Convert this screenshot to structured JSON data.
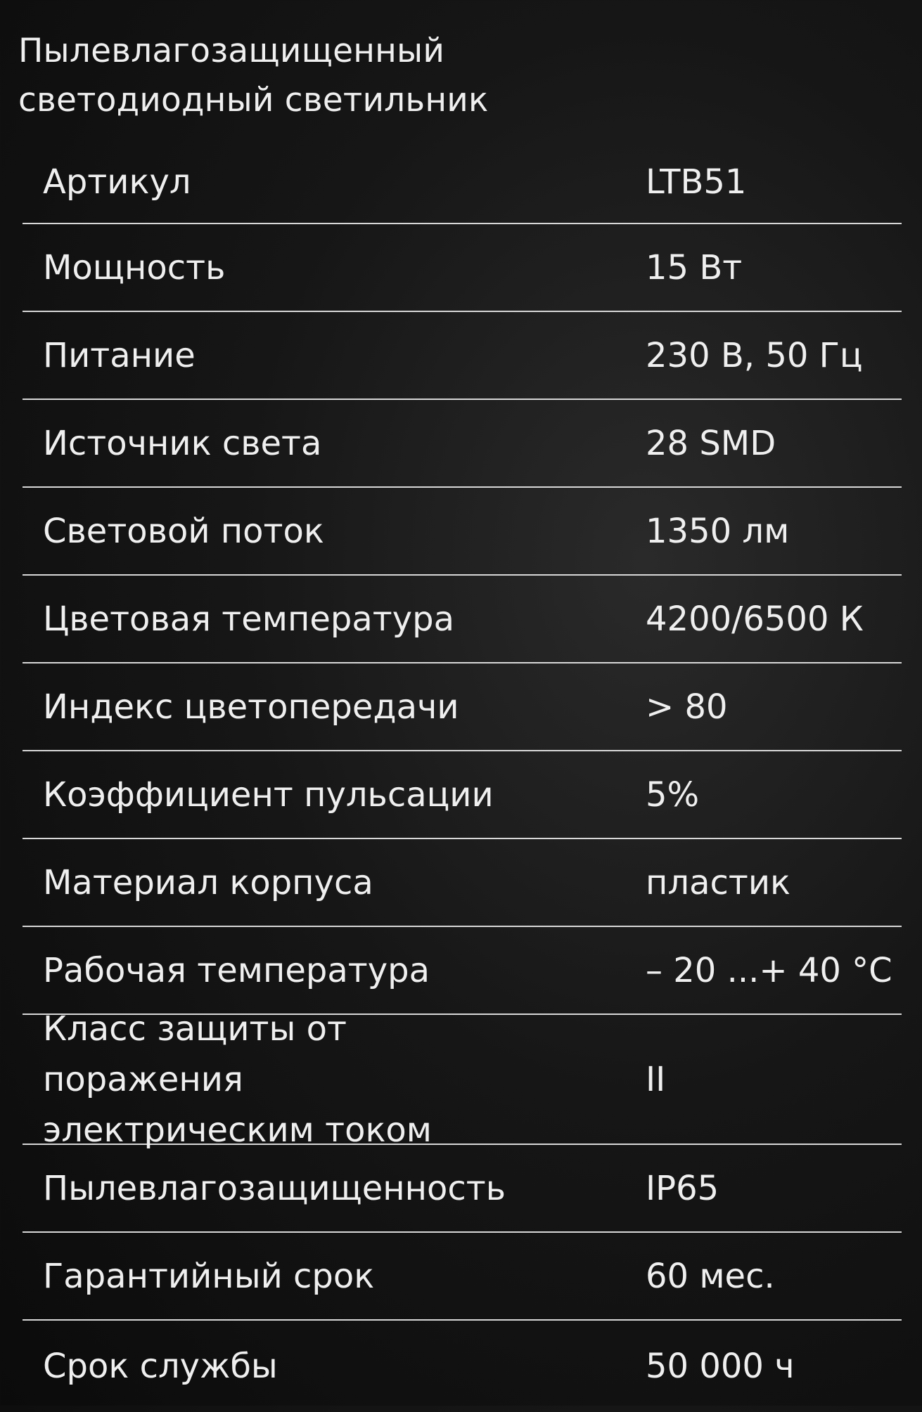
{
  "title": {
    "line1": "Пылевлагозащищенный",
    "line2": "светодиодный светильник"
  },
  "specs": [
    {
      "label": "Артикул",
      "value": "LTB51"
    },
    {
      "label": "Мощность",
      "value": "15 Вт"
    },
    {
      "label": "Питание",
      "value": "230 В, 50 Гц"
    },
    {
      "label": "Источник света",
      "value": "28 SMD"
    },
    {
      "label": "Световой поток",
      "value": "1350 лм"
    },
    {
      "label": "Цветовая температура",
      "value": "4200/6500 К"
    },
    {
      "label": "Индекс цветопередачи",
      "value": "> 80"
    },
    {
      "label": "Коэффициент пульсации",
      "value": "5%"
    },
    {
      "label": "Материал корпуса",
      "value": "пластик"
    },
    {
      "label": "Рабочая температура",
      "value": "– 20 ...+ 40 °С"
    },
    {
      "label": "Класс защиты от поражения электрическим током",
      "value": "II"
    },
    {
      "label": "Пылевлагозащищенность",
      "value": "IP65"
    },
    {
      "label": "Гарантийный срок",
      "value": "60 мес."
    },
    {
      "label": "Срок службы",
      "value": "50 000 ч"
    }
  ]
}
